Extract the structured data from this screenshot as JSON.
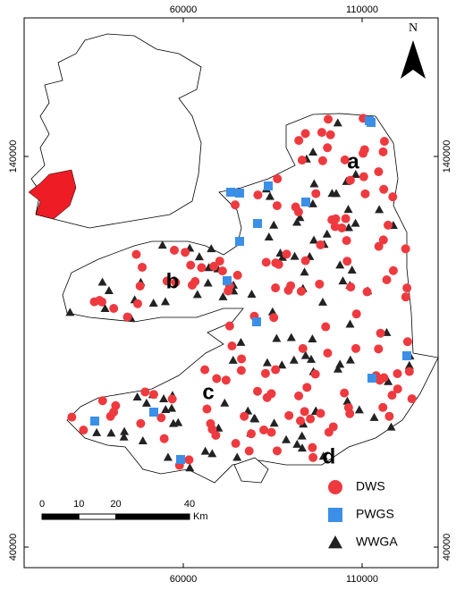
{
  "axes": {
    "x_ticks": [
      60000,
      110000
    ],
    "y_ticks": [
      140000,
      40000
    ]
  },
  "north": "N",
  "region_labels": [
    "a",
    "b",
    "c",
    "d"
  ],
  "legend": [
    {
      "label": "DWS",
      "color": "#ee3a3f"
    },
    {
      "label": "PWGS",
      "color": "#3b8fe6"
    },
    {
      "label": "WWGA",
      "color": "#222222"
    }
  ],
  "scale_bar": {
    "ticks": [
      0,
      10,
      20,
      40
    ],
    "unit": "Km"
  }
}
